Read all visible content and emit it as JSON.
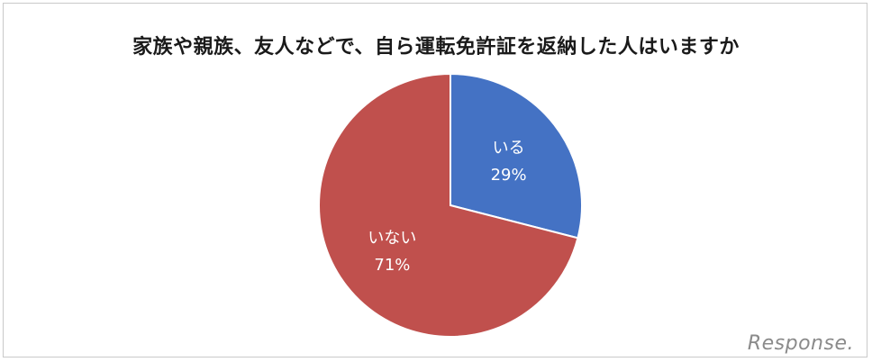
{
  "chart_data": {
    "type": "pie",
    "title": "家族や親族、友人などで、自ら運転免許証を返納した人はいますか",
    "slices": [
      {
        "label": "いる",
        "value": 29,
        "value_label": "29%",
        "color": "#4472C4"
      },
      {
        "label": "いない",
        "value": 71,
        "value_label": "71%",
        "color": "#C0504D"
      }
    ],
    "start_angle": "12 o'clock",
    "direction": "clockwise"
  },
  "watermark": {
    "text": "Response."
  }
}
